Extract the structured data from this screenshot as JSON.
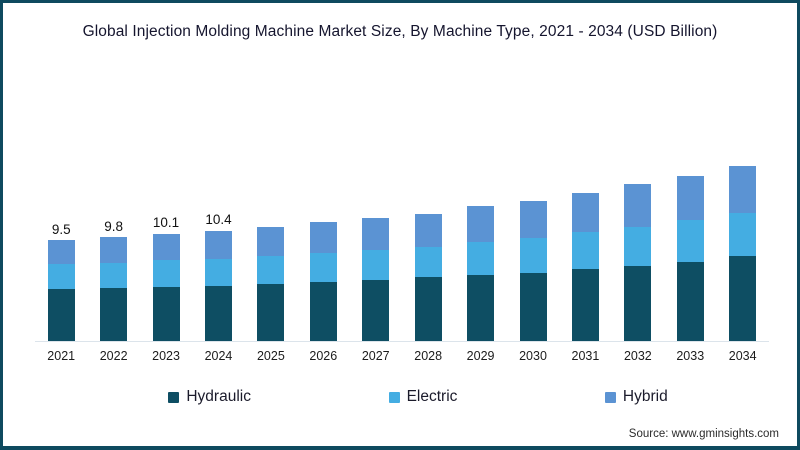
{
  "frame": {
    "title": "Global Injection Molding Machine Market Size, By Machine Type, 2021 - 2034 (USD Billion)",
    "source": "Source: www.gminsights.com"
  },
  "legend": [
    {
      "label": "Hydraulic",
      "color": "#0e4e63"
    },
    {
      "label": "Electric",
      "color": "#44ade2"
    },
    {
      "label": "Hybrid",
      "color": "#5b93d3"
    }
  ],
  "chart_data": {
    "type": "bar",
    "stacked": true,
    "title": "Global Injection Molding Machine Market Size, By Machine Type, 2021 - 2034 (USD Billion)",
    "units": "USD Billion",
    "categories": [
      "2021",
      "2022",
      "2023",
      "2024",
      "2025",
      "2026",
      "2027",
      "2028",
      "2029",
      "2030",
      "2031",
      "2032",
      "2033",
      "2034"
    ],
    "series": [
      {
        "name": "Hydraulic",
        "color": "#0e4e63",
        "values": [
          4.9,
          5.0,
          5.1,
          5.2,
          5.4,
          5.6,
          5.8,
          6.0,
          6.2,
          6.4,
          6.8,
          7.1,
          7.5,
          8.0
        ]
      },
      {
        "name": "Electric",
        "color": "#44ade2",
        "values": [
          2.4,
          2.4,
          2.5,
          2.5,
          2.6,
          2.7,
          2.8,
          2.9,
          3.1,
          3.3,
          3.5,
          3.7,
          3.9,
          4.1
        ]
      },
      {
        "name": "Hybrid",
        "color": "#5b93d3",
        "values": [
          2.2,
          2.4,
          2.5,
          2.7,
          2.8,
          2.9,
          3.0,
          3.1,
          3.4,
          3.5,
          3.7,
          4.0,
          4.2,
          4.4
        ]
      }
    ],
    "totals": [
      9.5,
      9.8,
      10.1,
      10.4,
      10.8,
      11.2,
      11.6,
      12.0,
      12.7,
      13.2,
      14.0,
      14.8,
      15.6,
      16.5
    ],
    "data_labels": [
      "9.5",
      "9.8",
      "10.1",
      "10.4",
      "",
      "",
      "",
      "",
      "",
      "",
      "",
      "",
      "",
      ""
    ],
    "xlabel": "",
    "ylabel": "",
    "ylim": [
      0,
      17
    ],
    "grid": false,
    "legend_position": "bottom"
  }
}
